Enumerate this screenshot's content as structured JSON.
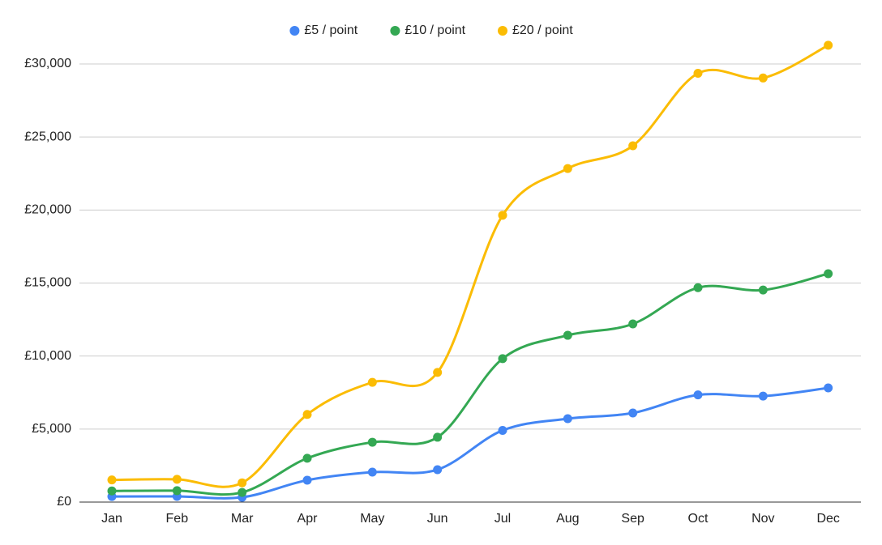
{
  "chart_data": {
    "type": "line",
    "categories": [
      "Jan",
      "Feb",
      "Mar",
      "Apr",
      "May",
      "Jun",
      "Jul",
      "Aug",
      "Sep",
      "Oct",
      "Nov",
      "Dec"
    ],
    "series": [
      {
        "name": "£5 / point",
        "color": "#4285f4",
        "values": [
          380,
          390,
          330,
          1500,
          2050,
          2220,
          4910,
          5710,
          6100,
          7340,
          7260,
          7820
        ]
      },
      {
        "name": "£10 / point",
        "color": "#34a853",
        "values": [
          760,
          780,
          660,
          3000,
          4100,
          4440,
          9820,
          11420,
          12200,
          14680,
          14520,
          15640
        ]
      },
      {
        "name": "£20 / point",
        "color": "#fbbc04",
        "values": [
          1520,
          1560,
          1320,
          6000,
          8200,
          8880,
          19640,
          22840,
          24400,
          29360,
          29040,
          31280
        ]
      }
    ],
    "ylim": [
      0,
      30000
    ],
    "yticks": [
      {
        "value": 0,
        "label": "£0"
      },
      {
        "value": 5000,
        "label": "£5,000"
      },
      {
        "value": 10000,
        "label": "£10,000"
      },
      {
        "value": 15000,
        "label": "£15,000"
      },
      {
        "value": 20000,
        "label": "£20,000"
      },
      {
        "value": 25000,
        "label": "£25,000"
      },
      {
        "value": 30000,
        "label": "£30,000"
      }
    ],
    "grid": true,
    "smooth": true,
    "legend": "top"
  }
}
